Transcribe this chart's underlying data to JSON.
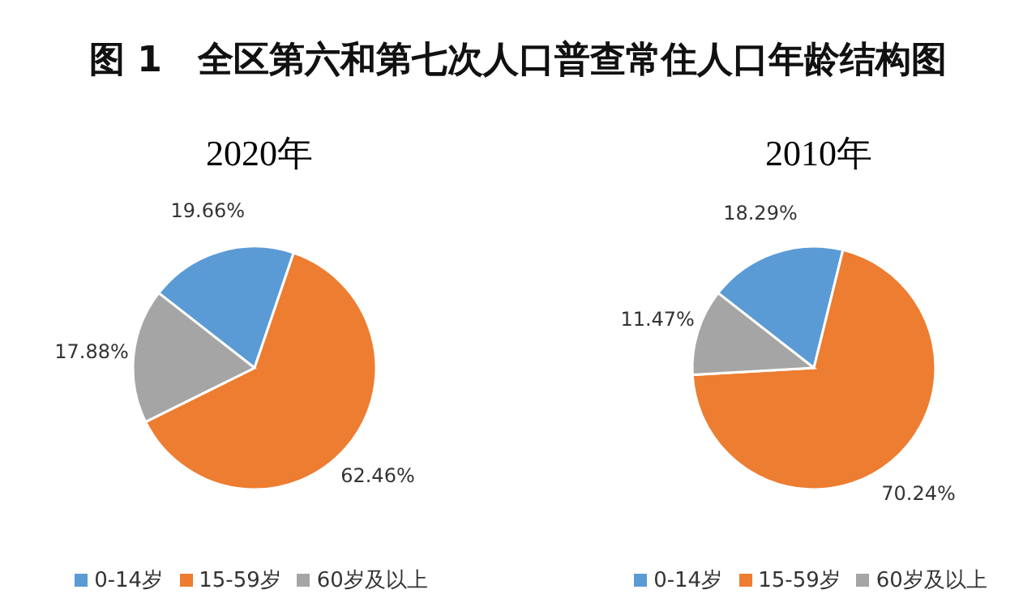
{
  "chart_data": [
    {
      "type": "pie",
      "title": "图 1　全区第六和第七次人口普查常住人口年龄结构图",
      "subtitle": "2020年",
      "categories": [
        "0-14岁",
        "15-59岁",
        "60岁及以上"
      ],
      "values": [
        19.66,
        62.46,
        17.88
      ],
      "value_labels": [
        "19.66%",
        "62.46%",
        "17.88%"
      ],
      "colors": [
        "#5b9bd5",
        "#ed7d31",
        "#a5a5a5"
      ],
      "legend": "bottom"
    },
    {
      "type": "pie",
      "subtitle": "2010年",
      "categories": [
        "0-14岁",
        "15-59岁",
        "60岁及以上"
      ],
      "values": [
        18.29,
        70.24,
        11.47
      ],
      "value_labels": [
        "18.29%",
        "70.24%",
        "11.47%"
      ],
      "colors": [
        "#5b9bd5",
        "#ed7d31",
        "#a5a5a5"
      ],
      "legend": "bottom"
    }
  ]
}
